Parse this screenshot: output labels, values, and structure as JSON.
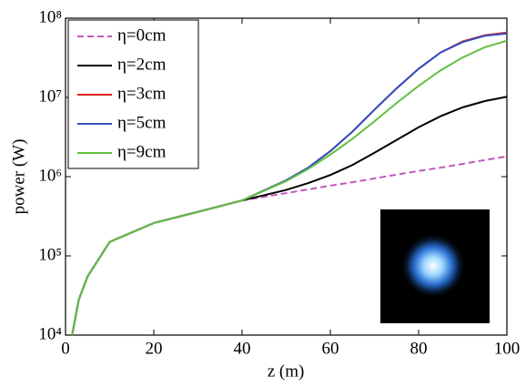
{
  "chart_data": {
    "type": "line",
    "x_label": "z (m)",
    "y_label": "power (W)",
    "log_y": true,
    "xlim": [
      0,
      100
    ],
    "xticks": [
      0,
      20,
      40,
      60,
      80,
      100
    ],
    "ylim": [
      10000,
      100000000
    ],
    "yticks": [
      {
        "value": 10000,
        "label": "10⁴"
      },
      {
        "value": 100000,
        "label": "10⁵"
      },
      {
        "value": 1000000,
        "label": "10⁶"
      },
      {
        "value": 10000000,
        "label": "10⁷"
      },
      {
        "value": 100000000,
        "label": "10⁸"
      }
    ],
    "legend": "upper left",
    "x": [
      1.5,
      3,
      5,
      10,
      20,
      30,
      40,
      50,
      55,
      60,
      65,
      70,
      75,
      80,
      85,
      90,
      95,
      100
    ],
    "series": [
      {
        "name": "η=0cm",
        "color": "#c058c0",
        "dashed": true,
        "values": [
          10000,
          28000,
          55000,
          150000,
          260000,
          360000,
          500000,
          620000,
          690000,
          770000,
          850000,
          950000,
          1060000,
          1180000,
          1300000,
          1450000,
          1620000,
          1800000
        ]
      },
      {
        "name": "η=2cm",
        "color": "#000000",
        "dashed": false,
        "values": [
          10000,
          28000,
          55000,
          150000,
          260000,
          360000,
          500000,
          680000,
          830000,
          1050000,
          1400000,
          2000000,
          2900000,
          4200000,
          5800000,
          7500000,
          9000000,
          10200000
        ]
      },
      {
        "name": "η=3cm",
        "color": "#e02020",
        "dashed": false,
        "values": [
          10000,
          28000,
          55000,
          150000,
          260000,
          360000,
          500000,
          900000,
          1300000,
          2100000,
          3700000,
          7000000,
          13000000,
          23000000,
          37000000,
          51000000,
          61000000,
          66000000
        ]
      },
      {
        "name": "η=5cm",
        "color": "#3050c0",
        "dashed": false,
        "values": [
          10000,
          28000,
          55000,
          150000,
          260000,
          360000,
          500000,
          900000,
          1300000,
          2100000,
          3700000,
          7000000,
          13000000,
          23000000,
          37000000,
          50000000,
          60000000,
          64000000
        ]
      },
      {
        "name": "η=9cm",
        "color": "#60c040",
        "dashed": false,
        "values": [
          10000,
          28000,
          55000,
          150000,
          260000,
          360000,
          500000,
          880000,
          1250000,
          1900000,
          3000000,
          5000000,
          8500000,
          14000000,
          22000000,
          32000000,
          43000000,
          52000000
        ]
      }
    ]
  }
}
